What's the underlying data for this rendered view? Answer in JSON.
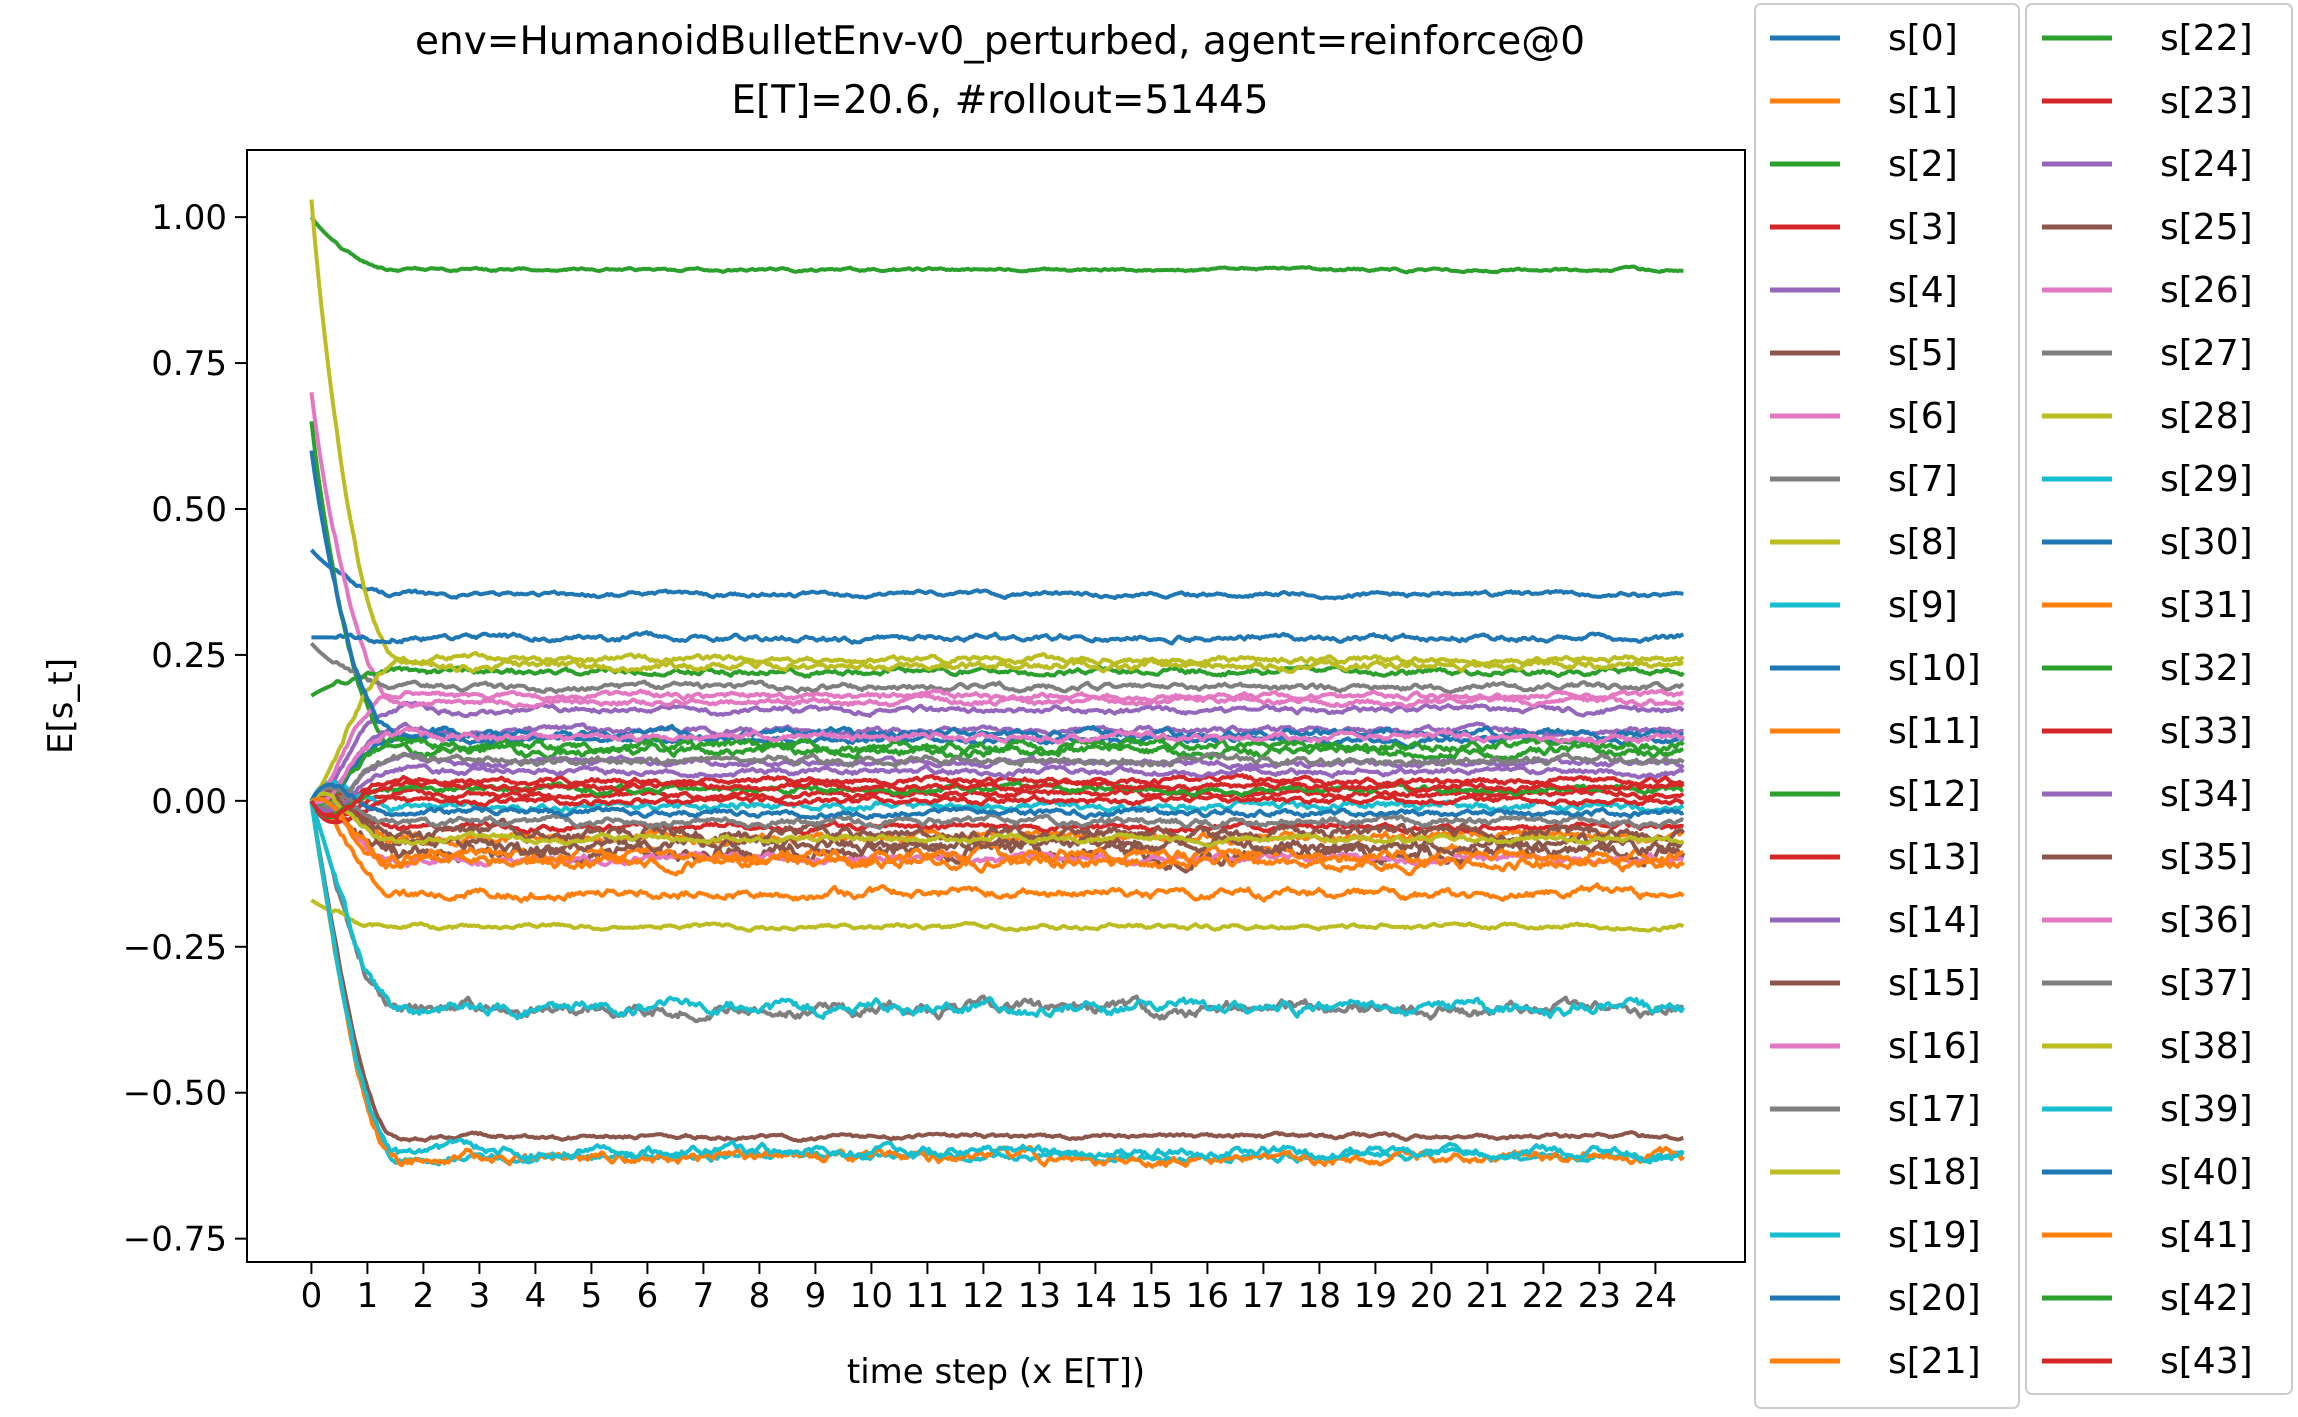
{
  "chart_data": {
    "type": "line",
    "title_line1": "env=HumanoidBulletEnv-v0_perturbed, agent=reinforce@0",
    "title_line2": "E[T]=20.6, #rollout=51445",
    "xlabel": "time step (x E[T])",
    "ylabel": "E[s_t]",
    "xlim": [
      -1.15,
      25.6
    ],
    "ylim": [
      -0.79,
      1.115
    ],
    "x_ticks": [
      "0",
      "1",
      "2",
      "3",
      "4",
      "5",
      "6",
      "7",
      "8",
      "9",
      "10",
      "11",
      "12",
      "13",
      "14",
      "15",
      "16",
      "17",
      "18",
      "19",
      "20",
      "21",
      "22",
      "23",
      "24"
    ],
    "y_ticks": [
      "1.00",
      "0.75",
      "0.50",
      "0.25",
      "0.00",
      "−0.25",
      "−0.50",
      "−0.75"
    ],
    "y_tick_values": [
      1.0,
      0.75,
      0.5,
      0.25,
      0.0,
      -0.25,
      -0.5,
      -0.75
    ],
    "x_end": 24.5,
    "grid": false,
    "legend_placement": "outside-right, two columns",
    "series": [
      {
        "name": "s[0]",
        "color": "#1f77b4",
        "start": 0.43,
        "final": 0.354,
        "noise": 0.003
      },
      {
        "name": "s[1]",
        "color": "#ff7f0e",
        "start": 0.0,
        "final": -0.062,
        "noise": 0.006
      },
      {
        "name": "s[2]",
        "color": "#2ca02c",
        "start": 1.0,
        "final": 0.91,
        "noise": 0.002
      },
      {
        "name": "s[3]",
        "color": "#d62728",
        "start": 0.0,
        "final": 0.012,
        "noise": 0.004
      },
      {
        "name": "s[4]",
        "color": "#9467bd",
        "start": 0.0,
        "final": 0.155,
        "noise": 0.004
      },
      {
        "name": "s[5]",
        "color": "#8c564b",
        "start": 0.0,
        "final": -0.575,
        "noise": 0.003
      },
      {
        "name": "s[6]",
        "color": "#e377c2",
        "start": 0.7,
        "final": 0.17,
        "noise": 0.004
      },
      {
        "name": "s[7]",
        "color": "#7f7f7f",
        "start": 0.0,
        "final": -0.355,
        "noise": 0.008
      },
      {
        "name": "s[8]",
        "color": "#bcbd22",
        "start": 1.03,
        "final": 0.242,
        "noise": 0.004
      },
      {
        "name": "s[9]",
        "color": "#17becf",
        "start": 0.0,
        "final": -0.61,
        "noise": 0.005
      },
      {
        "name": "s[10]",
        "color": "#1f77b4",
        "start": 0.28,
        "final": 0.28,
        "noise": 0.004
      },
      {
        "name": "s[11]",
        "color": "#ff7f0e",
        "start": 0.0,
        "final": -0.158,
        "noise": 0.006
      },
      {
        "name": "s[12]",
        "color": "#2ca02c",
        "start": 0.65,
        "final": 0.085,
        "noise": 0.006
      },
      {
        "name": "s[13]",
        "color": "#d62728",
        "start": 0.0,
        "final": 0.035,
        "noise": 0.004
      },
      {
        "name": "s[14]",
        "color": "#9467bd",
        "start": 0.0,
        "final": 0.12,
        "noise": 0.004
      },
      {
        "name": "s[15]",
        "color": "#8c564b",
        "start": 0.0,
        "final": -0.088,
        "noise": 0.01
      },
      {
        "name": "s[16]",
        "color": "#e377c2",
        "start": 0.0,
        "final": -0.1,
        "noise": 0.005
      },
      {
        "name": "s[17]",
        "color": "#7f7f7f",
        "start": 0.27,
        "final": 0.195,
        "noise": 0.004
      },
      {
        "name": "s[18]",
        "color": "#bcbd22",
        "start": -0.17,
        "final": -0.215,
        "noise": 0.003
      },
      {
        "name": "s[19]",
        "color": "#17becf",
        "start": 0.0,
        "final": -0.008,
        "noise": 0.005
      },
      {
        "name": "s[20]",
        "color": "#1f77b4",
        "start": 0.0,
        "final": 0.105,
        "noise": 0.004
      },
      {
        "name": "s[21]",
        "color": "#ff7f0e",
        "start": 0.0,
        "final": -0.092,
        "noise": 0.008
      },
      {
        "name": "s[22]",
        "color": "#2ca02c",
        "start": 0.18,
        "final": 0.222,
        "noise": 0.004
      },
      {
        "name": "s[23]",
        "color": "#d62728",
        "start": 0.0,
        "final": -0.045,
        "noise": 0.004
      },
      {
        "name": "s[24]",
        "color": "#9467bd",
        "start": 0.0,
        "final": 0.065,
        "noise": 0.004
      },
      {
        "name": "s[25]",
        "color": "#8c564b",
        "start": 0.0,
        "final": -0.055,
        "noise": 0.008
      },
      {
        "name": "s[26]",
        "color": "#e377c2",
        "start": 0.0,
        "final": 0.18,
        "noise": 0.004
      },
      {
        "name": "s[27]",
        "color": "#7f7f7f",
        "start": 0.0,
        "final": 0.07,
        "noise": 0.005
      },
      {
        "name": "s[28]",
        "color": "#bcbd22",
        "start": 0.0,
        "final": 0.232,
        "noise": 0.005
      },
      {
        "name": "s[29]",
        "color": "#17becf",
        "start": 0.0,
        "final": -0.355,
        "noise": 0.008
      },
      {
        "name": "s[30]",
        "color": "#1f77b4",
        "start": 0.6,
        "final": 0.115,
        "noise": 0.005
      },
      {
        "name": "s[31]",
        "color": "#ff7f0e",
        "start": 0.0,
        "final": -0.61,
        "noise": 0.007
      },
      {
        "name": "s[32]",
        "color": "#2ca02c",
        "start": 0.0,
        "final": 0.095,
        "noise": 0.006
      },
      {
        "name": "s[33]",
        "color": "#d62728",
        "start": 0.0,
        "final": 0.0,
        "noise": 0.004
      },
      {
        "name": "s[34]",
        "color": "#9467bd",
        "start": 0.0,
        "final": 0.05,
        "noise": 0.004
      },
      {
        "name": "s[35]",
        "color": "#8c564b",
        "start": 0.0,
        "final": -0.075,
        "noise": 0.008
      },
      {
        "name": "s[36]",
        "color": "#e377c2",
        "start": 0.0,
        "final": 0.11,
        "noise": 0.005
      },
      {
        "name": "s[37]",
        "color": "#7f7f7f",
        "start": 0.0,
        "final": -0.035,
        "noise": 0.005
      },
      {
        "name": "s[38]",
        "color": "#bcbd22",
        "start": 0.0,
        "final": -0.065,
        "noise": 0.004
      },
      {
        "name": "s[39]",
        "color": "#17becf",
        "start": 0.0,
        "final": -0.6,
        "noise": 0.006
      },
      {
        "name": "s[40]",
        "color": "#1f77b4",
        "start": 0.0,
        "final": -0.02,
        "noise": 0.004
      },
      {
        "name": "s[41]",
        "color": "#ff7f0e",
        "start": 0.0,
        "final": -0.105,
        "noise": 0.007
      },
      {
        "name": "s[42]",
        "color": "#2ca02c",
        "start": 0.0,
        "final": 0.02,
        "noise": 0.004
      },
      {
        "name": "s[43]",
        "color": "#d62728",
        "start": 0.0,
        "final": 0.025,
        "noise": 0.004
      }
    ]
  }
}
